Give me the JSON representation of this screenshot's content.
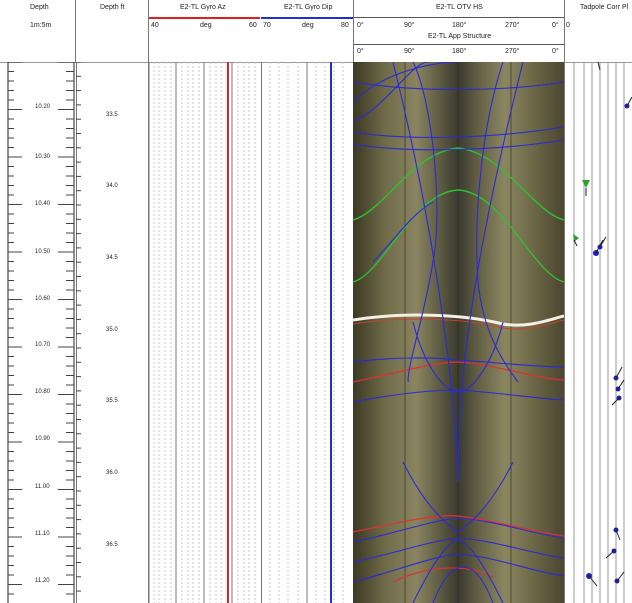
{
  "header": {
    "depth_title": "Depth",
    "depth_scale": "1m:5m",
    "depthft_title": "Depth ft",
    "gyro_az": {
      "title": "E2-TL Gyro Az",
      "min": "40",
      "unit": "deg",
      "max": "60",
      "color": "#e02020"
    },
    "gyro_dip": {
      "title": "E2-TL Gyro Dip",
      "min": "70",
      "unit": "deg",
      "max": "80",
      "color": "#2030c8"
    },
    "otv": {
      "title": "E2-TL OTV HS",
      "ticks": [
        "0°",
        "90°",
        "180°",
        "270°",
        "0°"
      ],
      "end": "0"
    },
    "app_structure": {
      "title": "E2-TL App Structure",
      "ticks": [
        "0°",
        "90°",
        "180°",
        "270°",
        "0°"
      ]
    },
    "tadpole_title": "Tadpole Corr Pl"
  },
  "depth_m_labels": [
    "10.20",
    "10.30",
    "10.40",
    "10.50",
    "10.60",
    "10.70",
    "10.80",
    "10.90",
    "11.00",
    "11.10",
    "11.20"
  ],
  "depth_ft_labels": [
    "33.5",
    "34.0",
    "34.5",
    "35.0",
    "35.5",
    "36.0",
    "36.5"
  ],
  "colors": {
    "sine_blue": "#2a2ad8",
    "sine_green": "#30c030",
    "sine_red": "#e03030",
    "tadpole_green": "#30a030",
    "tadpole_blue": "#2020b0"
  }
}
